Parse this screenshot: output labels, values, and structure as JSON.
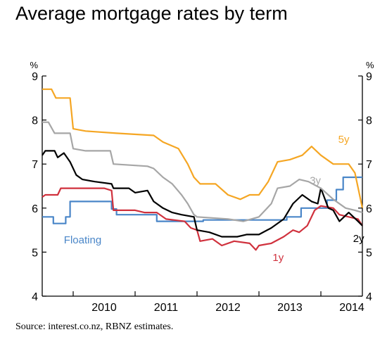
{
  "chart_data": {
    "type": "line",
    "title": "Average mortgage rates by term",
    "source": "Source: interest.co.nz, RBNZ estimates.",
    "y_unit_left": "%",
    "y_unit_right": "%",
    "ylim": [
      4,
      9
    ],
    "yticks": [
      "4",
      "5",
      "6",
      "7",
      "8",
      "9"
    ],
    "xlim": [
      2009.5,
      2014.67
    ],
    "xticks": [
      "2010",
      "2011",
      "2012",
      "2013",
      "2014"
    ],
    "grid": false,
    "legend": "inline labels",
    "series": [
      {
        "name": "Floating",
        "color": "#4a86c8",
        "label_at": [
          2009.85,
          5.2
        ],
        "points": [
          [
            2009.5,
            5.8
          ],
          [
            2009.68,
            5.8
          ],
          [
            2009.68,
            5.65
          ],
          [
            2009.88,
            5.65
          ],
          [
            2009.88,
            5.8
          ],
          [
            2009.95,
            5.8
          ],
          [
            2009.95,
            6.15
          ],
          [
            2010.62,
            6.15
          ],
          [
            2010.62,
            5.98
          ],
          [
            2010.7,
            5.98
          ],
          [
            2010.7,
            5.85
          ],
          [
            2011.35,
            5.85
          ],
          [
            2011.35,
            5.7
          ],
          [
            2012.1,
            5.7
          ],
          [
            2012.1,
            5.73
          ],
          [
            2013.45,
            5.73
          ],
          [
            2013.45,
            5.8
          ],
          [
            2013.68,
            5.8
          ],
          [
            2013.68,
            6.0
          ],
          [
            2014.1,
            6.0
          ],
          [
            2014.1,
            6.18
          ],
          [
            2014.25,
            6.18
          ],
          [
            2014.25,
            6.42
          ],
          [
            2014.36,
            6.42
          ],
          [
            2014.36,
            6.7
          ],
          [
            2014.67,
            6.7
          ]
        ]
      },
      {
        "name": "1y",
        "color": "#d0313d",
        "label_at": [
          2013.22,
          4.8
        ],
        "points": [
          [
            2009.5,
            6.25
          ],
          [
            2009.55,
            6.3
          ],
          [
            2009.75,
            6.3
          ],
          [
            2009.8,
            6.45
          ],
          [
            2010.2,
            6.45
          ],
          [
            2010.5,
            6.45
          ],
          [
            2010.62,
            6.4
          ],
          [
            2010.65,
            5.95
          ],
          [
            2011.0,
            5.95
          ],
          [
            2011.15,
            5.9
          ],
          [
            2011.35,
            5.9
          ],
          [
            2011.5,
            5.75
          ],
          [
            2011.8,
            5.7
          ],
          [
            2011.9,
            5.55
          ],
          [
            2012.0,
            5.5
          ],
          [
            2012.05,
            5.25
          ],
          [
            2012.25,
            5.3
          ],
          [
            2012.4,
            5.15
          ],
          [
            2012.6,
            5.25
          ],
          [
            2012.85,
            5.2
          ],
          [
            2012.95,
            5.05
          ],
          [
            2013.0,
            5.15
          ],
          [
            2013.2,
            5.2
          ],
          [
            2013.4,
            5.35
          ],
          [
            2013.55,
            5.5
          ],
          [
            2013.65,
            5.45
          ],
          [
            2013.78,
            5.6
          ],
          [
            2013.9,
            5.95
          ],
          [
            2014.0,
            6.05
          ],
          [
            2014.2,
            6.0
          ],
          [
            2014.3,
            5.85
          ],
          [
            2014.45,
            5.8
          ],
          [
            2014.6,
            5.75
          ],
          [
            2014.67,
            5.6
          ]
        ]
      },
      {
        "name": "2y",
        "color": "#000000",
        "label_at": [
          2014.52,
          5.23
        ],
        "points": [
          [
            2009.5,
            7.2
          ],
          [
            2009.55,
            7.3
          ],
          [
            2009.7,
            7.3
          ],
          [
            2009.75,
            7.15
          ],
          [
            2009.85,
            7.25
          ],
          [
            2009.95,
            7.05
          ],
          [
            2010.05,
            6.75
          ],
          [
            2010.15,
            6.65
          ],
          [
            2010.35,
            6.6
          ],
          [
            2010.62,
            6.55
          ],
          [
            2010.65,
            6.45
          ],
          [
            2010.9,
            6.45
          ],
          [
            2011.0,
            6.35
          ],
          [
            2011.2,
            6.4
          ],
          [
            2011.3,
            6.15
          ],
          [
            2011.45,
            6.0
          ],
          [
            2011.6,
            5.9
          ],
          [
            2011.75,
            5.85
          ],
          [
            2011.95,
            5.8
          ],
          [
            2012.0,
            5.5
          ],
          [
            2012.2,
            5.45
          ],
          [
            2012.4,
            5.35
          ],
          [
            2012.65,
            5.35
          ],
          [
            2012.8,
            5.4
          ],
          [
            2013.0,
            5.4
          ],
          [
            2013.2,
            5.55
          ],
          [
            2013.4,
            5.75
          ],
          [
            2013.55,
            6.1
          ],
          [
            2013.7,
            6.3
          ],
          [
            2013.85,
            6.15
          ],
          [
            2013.95,
            6.1
          ],
          [
            2014.0,
            6.45
          ],
          [
            2014.12,
            6.0
          ],
          [
            2014.2,
            5.95
          ],
          [
            2014.3,
            5.7
          ],
          [
            2014.45,
            5.9
          ],
          [
            2014.6,
            5.7
          ],
          [
            2014.67,
            5.6
          ]
        ]
      },
      {
        "name": "3y",
        "color": "#a6a6a6",
        "label_at": [
          2013.82,
          6.55
        ],
        "points": [
          [
            2009.5,
            7.95
          ],
          [
            2009.6,
            7.95
          ],
          [
            2009.7,
            7.7
          ],
          [
            2009.95,
            7.7
          ],
          [
            2010.0,
            7.35
          ],
          [
            2010.2,
            7.3
          ],
          [
            2010.6,
            7.3
          ],
          [
            2010.65,
            7.0
          ],
          [
            2011.2,
            6.95
          ],
          [
            2011.3,
            6.9
          ],
          [
            2011.45,
            6.7
          ],
          [
            2011.6,
            6.55
          ],
          [
            2011.75,
            6.3
          ],
          [
            2011.85,
            6.1
          ],
          [
            2011.95,
            5.85
          ],
          [
            2012.0,
            5.8
          ],
          [
            2012.5,
            5.75
          ],
          [
            2012.75,
            5.7
          ],
          [
            2013.0,
            5.8
          ],
          [
            2013.2,
            6.1
          ],
          [
            2013.3,
            6.45
          ],
          [
            2013.5,
            6.5
          ],
          [
            2013.65,
            6.65
          ],
          [
            2013.8,
            6.6
          ],
          [
            2014.0,
            6.45
          ],
          [
            2014.2,
            6.2
          ],
          [
            2014.4,
            6.0
          ],
          [
            2014.55,
            5.95
          ],
          [
            2014.67,
            5.9
          ]
        ]
      },
      {
        "name": "5y",
        "color": "#f5a623",
        "label_at": [
          2014.28,
          7.48
        ],
        "points": [
          [
            2009.5,
            8.7
          ],
          [
            2009.65,
            8.7
          ],
          [
            2009.72,
            8.5
          ],
          [
            2009.95,
            8.5
          ],
          [
            2010.0,
            7.8
          ],
          [
            2010.2,
            7.75
          ],
          [
            2010.7,
            7.7
          ],
          [
            2011.3,
            7.65
          ],
          [
            2011.45,
            7.5
          ],
          [
            2011.7,
            7.35
          ],
          [
            2011.85,
            7.0
          ],
          [
            2011.95,
            6.7
          ],
          [
            2012.05,
            6.55
          ],
          [
            2012.3,
            6.55
          ],
          [
            2012.5,
            6.3
          ],
          [
            2012.7,
            6.2
          ],
          [
            2012.85,
            6.3
          ],
          [
            2013.0,
            6.3
          ],
          [
            2013.15,
            6.6
          ],
          [
            2013.3,
            7.05
          ],
          [
            2013.5,
            7.1
          ],
          [
            2013.7,
            7.2
          ],
          [
            2013.85,
            7.4
          ],
          [
            2014.0,
            7.2
          ],
          [
            2014.2,
            7.0
          ],
          [
            2014.45,
            7.0
          ],
          [
            2014.55,
            6.8
          ],
          [
            2014.67,
            6.0
          ]
        ]
      }
    ]
  }
}
